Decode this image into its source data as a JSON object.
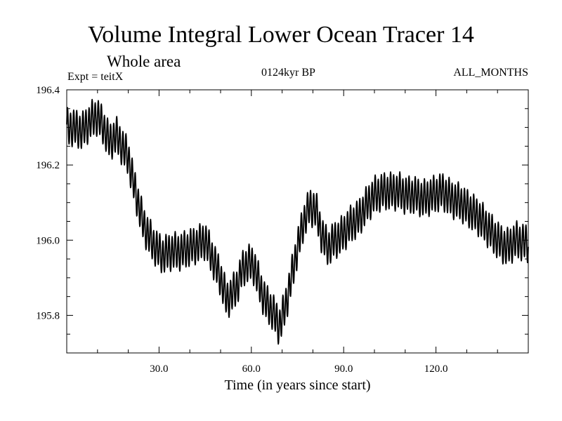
{
  "chart_data": {
    "type": "line",
    "title": "Volume Integral Lower Ocean Tracer 14",
    "subtitle": "Whole area",
    "experiment": "Expt = teitX",
    "period": "0124kyr BP",
    "months": "ALL_MONTHS",
    "xlabel": "Time (in years since start)",
    "ylabel": "",
    "xlim": [
      0,
      150
    ],
    "ylim": [
      195.7,
      196.4
    ],
    "xticks": [
      30,
      60,
      90,
      120
    ],
    "xtick_labels": [
      "30.0",
      "60.0",
      "90.0",
      "120.0"
    ],
    "yticks": [
      195.8,
      196.0,
      196.2,
      196.4
    ],
    "ytick_labels": [
      "195.8",
      "196.0",
      "196.2",
      "196.4"
    ],
    "line_color": "#000000",
    "seasonal_amplitude": 0.045,
    "series": [
      {
        "name": "Tracer 14",
        "x": [
          0,
          2,
          5,
          8,
          10,
          12,
          14,
          16,
          18,
          20,
          22,
          25,
          28,
          31,
          34,
          37,
          40,
          43,
          45,
          47,
          50,
          52,
          55,
          57,
          59,
          61,
          63,
          65,
          67,
          69,
          71,
          73,
          75,
          77,
          79,
          81,
          83,
          85,
          87,
          89,
          92,
          95,
          98,
          100,
          103,
          106,
          108,
          110,
          113,
          116,
          119,
          122,
          125,
          128,
          131,
          134,
          137,
          140,
          143,
          146,
          150
        ],
        "y": [
          196.3,
          196.3,
          196.29,
          196.32,
          196.33,
          196.3,
          196.26,
          196.28,
          196.25,
          196.22,
          196.14,
          196.04,
          195.99,
          195.96,
          195.97,
          195.97,
          195.98,
          195.99,
          196.0,
          195.96,
          195.9,
          195.84,
          195.87,
          195.92,
          195.94,
          195.93,
          195.87,
          195.83,
          195.81,
          195.77,
          195.82,
          195.9,
          195.98,
          196.05,
          196.09,
          196.08,
          196.01,
          195.98,
          196.0,
          196.01,
          196.04,
          196.06,
          196.1,
          196.12,
          196.13,
          196.13,
          196.13,
          196.12,
          196.12,
          196.11,
          196.12,
          196.13,
          196.11,
          196.1,
          196.08,
          196.06,
          196.03,
          196.0,
          195.98,
          196.0,
          195.99
        ]
      }
    ]
  }
}
